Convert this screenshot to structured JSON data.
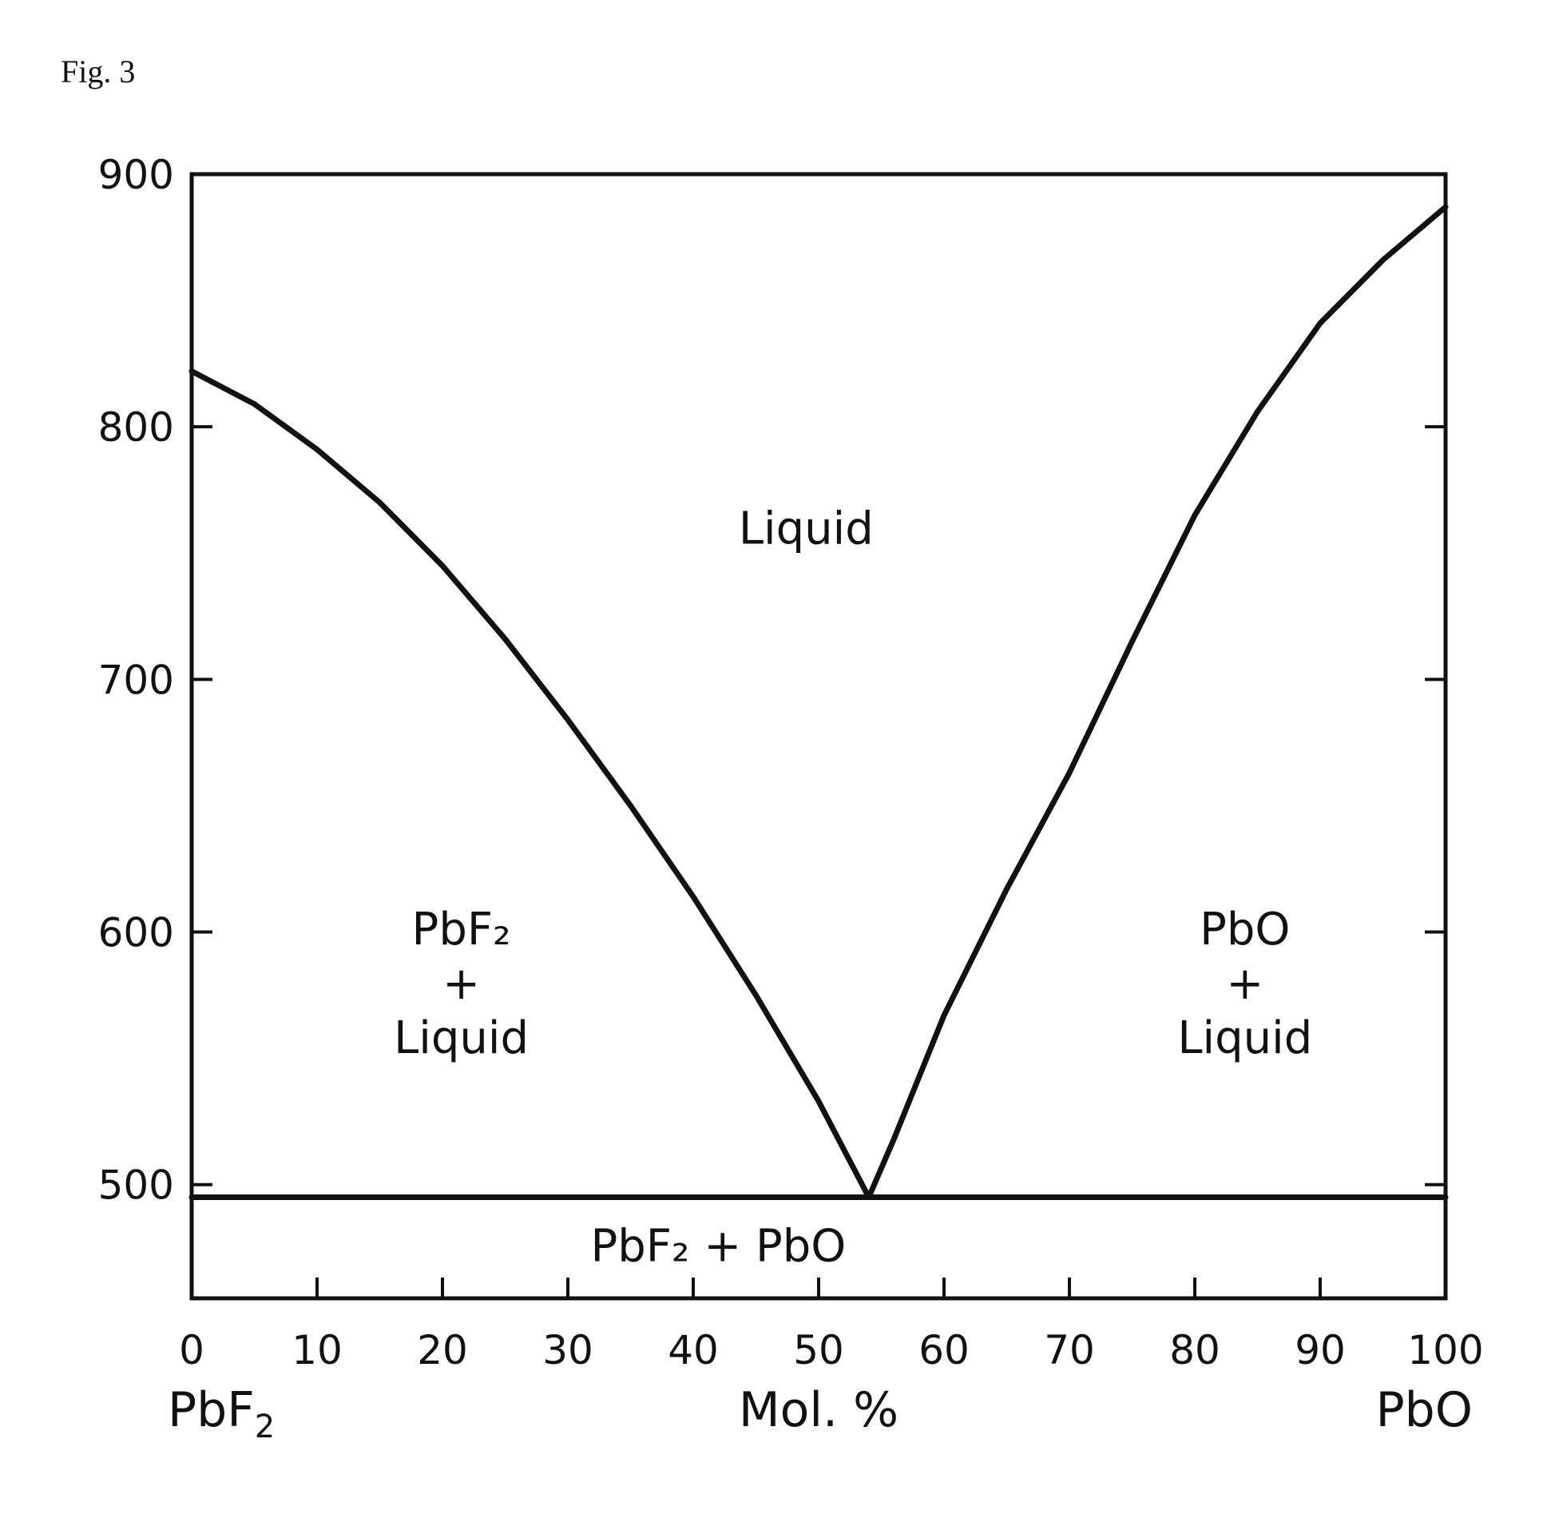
{
  "figure_label": "Fig. 3",
  "chart_data": {
    "type": "line",
    "title": "",
    "xlabel": "Mol. %",
    "ylabel": "",
    "x_end_labels": {
      "left": "PbF",
      "left_sub": "2",
      "right": "PbO"
    },
    "xlim": [
      0,
      100
    ],
    "ylim": [
      455,
      900
    ],
    "x_ticks": [
      0,
      10,
      20,
      30,
      40,
      50,
      60,
      70,
      80,
      90,
      100
    ],
    "x_tick_labels": [
      "0",
      "10",
      "20",
      "30",
      "40",
      "50",
      "60",
      "70",
      "80",
      "90",
      "100"
    ],
    "y_ticks": [
      500,
      600,
      700,
      800,
      900
    ],
    "y_tick_labels": [
      "500",
      "600",
      "700",
      "800",
      "900"
    ],
    "grid": false,
    "series": [
      {
        "x": [
          0,
          5,
          10,
          15,
          20,
          25,
          30,
          35,
          40,
          45,
          50,
          54
        ],
        "y": [
          822,
          809,
          791,
          770,
          745,
          716,
          684,
          650,
          614,
          575,
          533,
          495
        ]
      },
      {
        "x": [
          54,
          56,
          60,
          65,
          70,
          75,
          80,
          85,
          90,
          95,
          100
        ],
        "y": [
          495,
          518,
          567,
          617,
          663,
          715,
          765,
          806,
          841,
          866,
          887
        ]
      },
      {
        "x": [
          0,
          100
        ],
        "y": [
          495,
          495
        ]
      }
    ],
    "regions": [
      {
        "lines": [
          "Liquid"
        ],
        "x": 49,
        "y": 760
      },
      {
        "lines": [
          "PbF₂",
          "+",
          "Liquid"
        ],
        "x": 21.5,
        "y": 580
      },
      {
        "lines": [
          "PbO",
          "+",
          "Liquid"
        ],
        "x": 84,
        "y": 580
      },
      {
        "lines": [
          "PbF₂ + PbO"
        ],
        "x": 42,
        "y": 476
      }
    ]
  }
}
